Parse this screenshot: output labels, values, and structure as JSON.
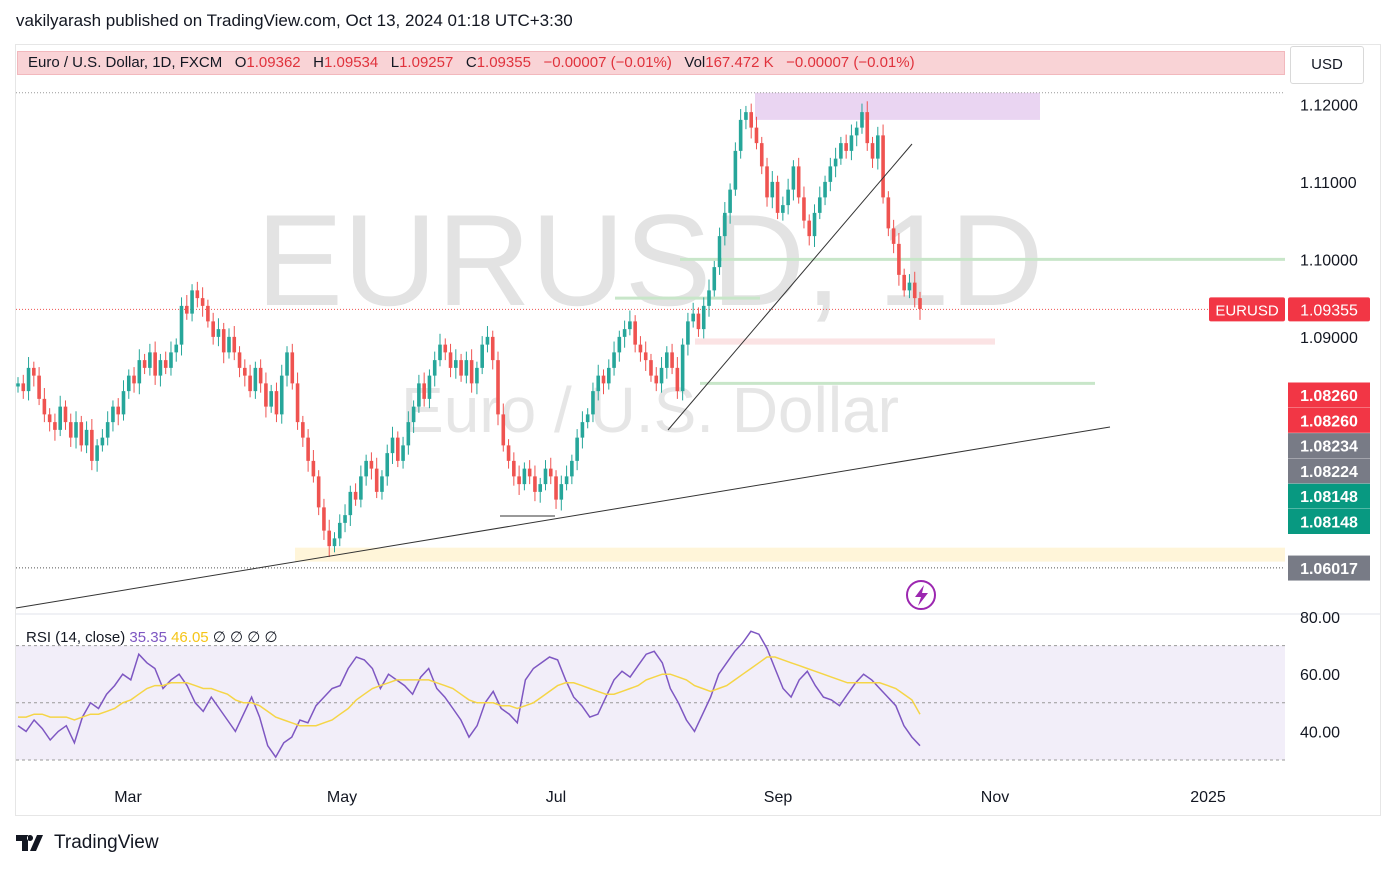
{
  "publish_line": "vakilyarash published on TradingView.com, Oct 13, 2024 01:18 UTC+3:30",
  "legend": {
    "title": "Euro / U.S. Dollar, 1D, FXCM",
    "o_label": "O",
    "o": "1.09362",
    "h_label": "H",
    "h": "1.09534",
    "l_label": "L",
    "l": "1.09257",
    "c_label": "C",
    "c": "1.09355",
    "change": "−0.00007 (−0.01%)",
    "vol_label": "Vol",
    "vol": "167.472 K",
    "vol_change": "−0.00007 (−0.01%)"
  },
  "currency_button": "USD",
  "watermark": {
    "symbol": "EURUSD, 1D",
    "name": "Euro / U.S. Dollar"
  },
  "rsi_legend": {
    "label": "RSI (14, close)",
    "rsi": "35.35",
    "ma": "46.05",
    "extras": "∅ ∅ ∅ ∅"
  },
  "footer": "TradingView",
  "colors": {
    "up": "#26a69a",
    "down": "#ef5350",
    "rsi": "#7e57c2",
    "rsi_ma": "#f5d547",
    "accent_purple": "#9c27b0"
  },
  "chart_data": [
    {
      "type": "candlestick",
      "title": "Euro / U.S. Dollar, 1D, FXCM",
      "x_ticks": [
        "Mar",
        "May",
        "Jul",
        "Sep",
        "Nov",
        "2025"
      ],
      "y_ticks": [
        1.12,
        1.11,
        1.1,
        1.09
      ],
      "y_tick_labels": [
        "1.12000",
        "1.11000",
        "1.10000",
        "1.09000"
      ],
      "ylim": [
        1.0545,
        1.1225
      ],
      "grid": false,
      "last_price_label": {
        "symbol": "EURUSD",
        "value": 1.09355,
        "text": "1.09355"
      },
      "price_labels": [
        {
          "value": 1.0826,
          "text": "1.08260",
          "color": "#f23645"
        },
        {
          "value": 1.0826,
          "text": "1.08260",
          "color": "#f23645"
        },
        {
          "value": 1.08234,
          "text": "1.08234",
          "color": "#787b86"
        },
        {
          "value": 1.08224,
          "text": "1.08224",
          "color": "#787b86"
        },
        {
          "value": 1.08148,
          "text": "1.08148",
          "color": "#089981"
        },
        {
          "value": 1.08148,
          "text": "1.08148",
          "color": "#089981"
        },
        {
          "value": 1.06017,
          "text": "1.06017",
          "color": "#787b86"
        }
      ],
      "zones": [
        {
          "from": 1.118,
          "to": 1.1215,
          "color": "#ead5f2"
        },
        {
          "from": 1.061,
          "to": 1.0628,
          "color": "#fff5d9"
        },
        {
          "from": 1.089,
          "to": 1.0898,
          "color": "#fbe3e4"
        }
      ],
      "closes": [
        1.084,
        1.083,
        1.086,
        1.085,
        1.082,
        1.08,
        1.079,
        1.078,
        1.081,
        1.079,
        1.077,
        1.079,
        1.076,
        1.078,
        1.074,
        1.076,
        1.077,
        1.079,
        1.081,
        1.08,
        1.083,
        1.085,
        1.084,
        1.087,
        1.086,
        1.088,
        1.085,
        1.087,
        1.086,
        1.088,
        1.089,
        1.094,
        1.093,
        1.096,
        1.095,
        1.094,
        1.092,
        1.09,
        1.091,
        1.088,
        1.09,
        1.088,
        1.086,
        1.085,
        1.083,
        1.086,
        1.084,
        1.081,
        1.083,
        1.08,
        1.085,
        1.088,
        1.084,
        1.079,
        1.077,
        1.074,
        1.072,
        1.068,
        1.065,
        1.063,
        1.064,
        1.066,
        1.067,
        1.07,
        1.069,
        1.072,
        1.074,
        1.073,
        1.07,
        1.072,
        1.075,
        1.077,
        1.074,
        1.076,
        1.079,
        1.081,
        1.084,
        1.082,
        1.085,
        1.087,
        1.089,
        1.088,
        1.086,
        1.087,
        1.085,
        1.087,
        1.084,
        1.086,
        1.089,
        1.09,
        1.087,
        1.08,
        1.076,
        1.074,
        1.072,
        1.071,
        1.073,
        1.072,
        1.07,
        1.071,
        1.073,
        1.072,
        1.069,
        1.071,
        1.072,
        1.074,
        1.077,
        1.079,
        1.08,
        1.083,
        1.085,
        1.084,
        1.086,
        1.088,
        1.09,
        1.091,
        1.092,
        1.089,
        1.088,
        1.087,
        1.085,
        1.084,
        1.086,
        1.088,
        1.086,
        1.083,
        1.089,
        1.092,
        1.093,
        1.091,
        1.094,
        1.096,
        1.099,
        1.103,
        1.106,
        1.109,
        1.114,
        1.118,
        1.119,
        1.117,
        1.115,
        1.112,
        1.108,
        1.11,
        1.106,
        1.107,
        1.109,
        1.112,
        1.108,
        1.105,
        1.103,
        1.106,
        1.108,
        1.11,
        1.112,
        1.113,
        1.115,
        1.114,
        1.116,
        1.117,
        1.119,
        1.115,
        1.113,
        1.116,
        1.108,
        1.104,
        1.102,
        1.098,
        1.096,
        1.097,
        1.095,
        1.0936
      ]
    },
    {
      "type": "line",
      "title": "RSI (14, close)",
      "y_ticks": [
        80,
        60,
        40
      ],
      "y_tick_labels": [
        "80.00",
        "60.00",
        "40.00"
      ],
      "ylim": [
        30,
        80
      ],
      "band": [
        30,
        70
      ],
      "series": [
        {
          "values": [
            42,
            40,
            44,
            41,
            37,
            40,
            42,
            36,
            45,
            50,
            48,
            53,
            56,
            60,
            58,
            67,
            64,
            62,
            55,
            58,
            60,
            56,
            50,
            47,
            52,
            48,
            44,
            40,
            46,
            52,
            45,
            35,
            31,
            36,
            38,
            44,
            43,
            49,
            52,
            55,
            56,
            62,
            66,
            65,
            62,
            55,
            60,
            58,
            56,
            53,
            59,
            62,
            55,
            52,
            48,
            44,
            38,
            42,
            50,
            54,
            48,
            46,
            43,
            58,
            62,
            64,
            66,
            65,
            58,
            52,
            49,
            45,
            46,
            52,
            58,
            61,
            59,
            63,
            67,
            68,
            64,
            55,
            50,
            44,
            40,
            46,
            52,
            60,
            64,
            68,
            71,
            75,
            74,
            69,
            62,
            55,
            52,
            58,
            61,
            56,
            52,
            51,
            49,
            53,
            57,
            60,
            58,
            55,
            52,
            49,
            42,
            38,
            35
          ]
        },
        {
          "values": [
            45,
            45,
            46,
            46,
            45,
            45,
            45,
            44,
            45,
            46,
            46,
            47,
            48,
            50,
            51,
            53,
            55,
            56,
            56,
            57,
            57,
            57,
            56,
            55,
            55,
            54,
            53,
            51,
            50,
            50,
            49,
            47,
            45,
            44,
            43,
            42,
            42,
            42,
            43,
            44,
            46,
            48,
            51,
            53,
            55,
            56,
            57,
            58,
            58,
            58,
            58,
            58,
            57,
            56,
            55,
            53,
            51,
            50,
            50,
            50,
            49,
            49,
            48,
            49,
            50,
            52,
            54,
            56,
            57,
            57,
            56,
            55,
            54,
            53,
            53,
            54,
            55,
            56,
            58,
            59,
            60,
            60,
            59,
            58,
            56,
            55,
            54,
            55,
            56,
            58,
            60,
            62,
            64,
            66,
            66,
            65,
            64,
            63,
            62,
            61,
            60,
            59,
            58,
            57,
            57,
            57,
            57,
            57,
            56,
            55,
            53,
            51,
            46
          ]
        }
      ]
    }
  ]
}
